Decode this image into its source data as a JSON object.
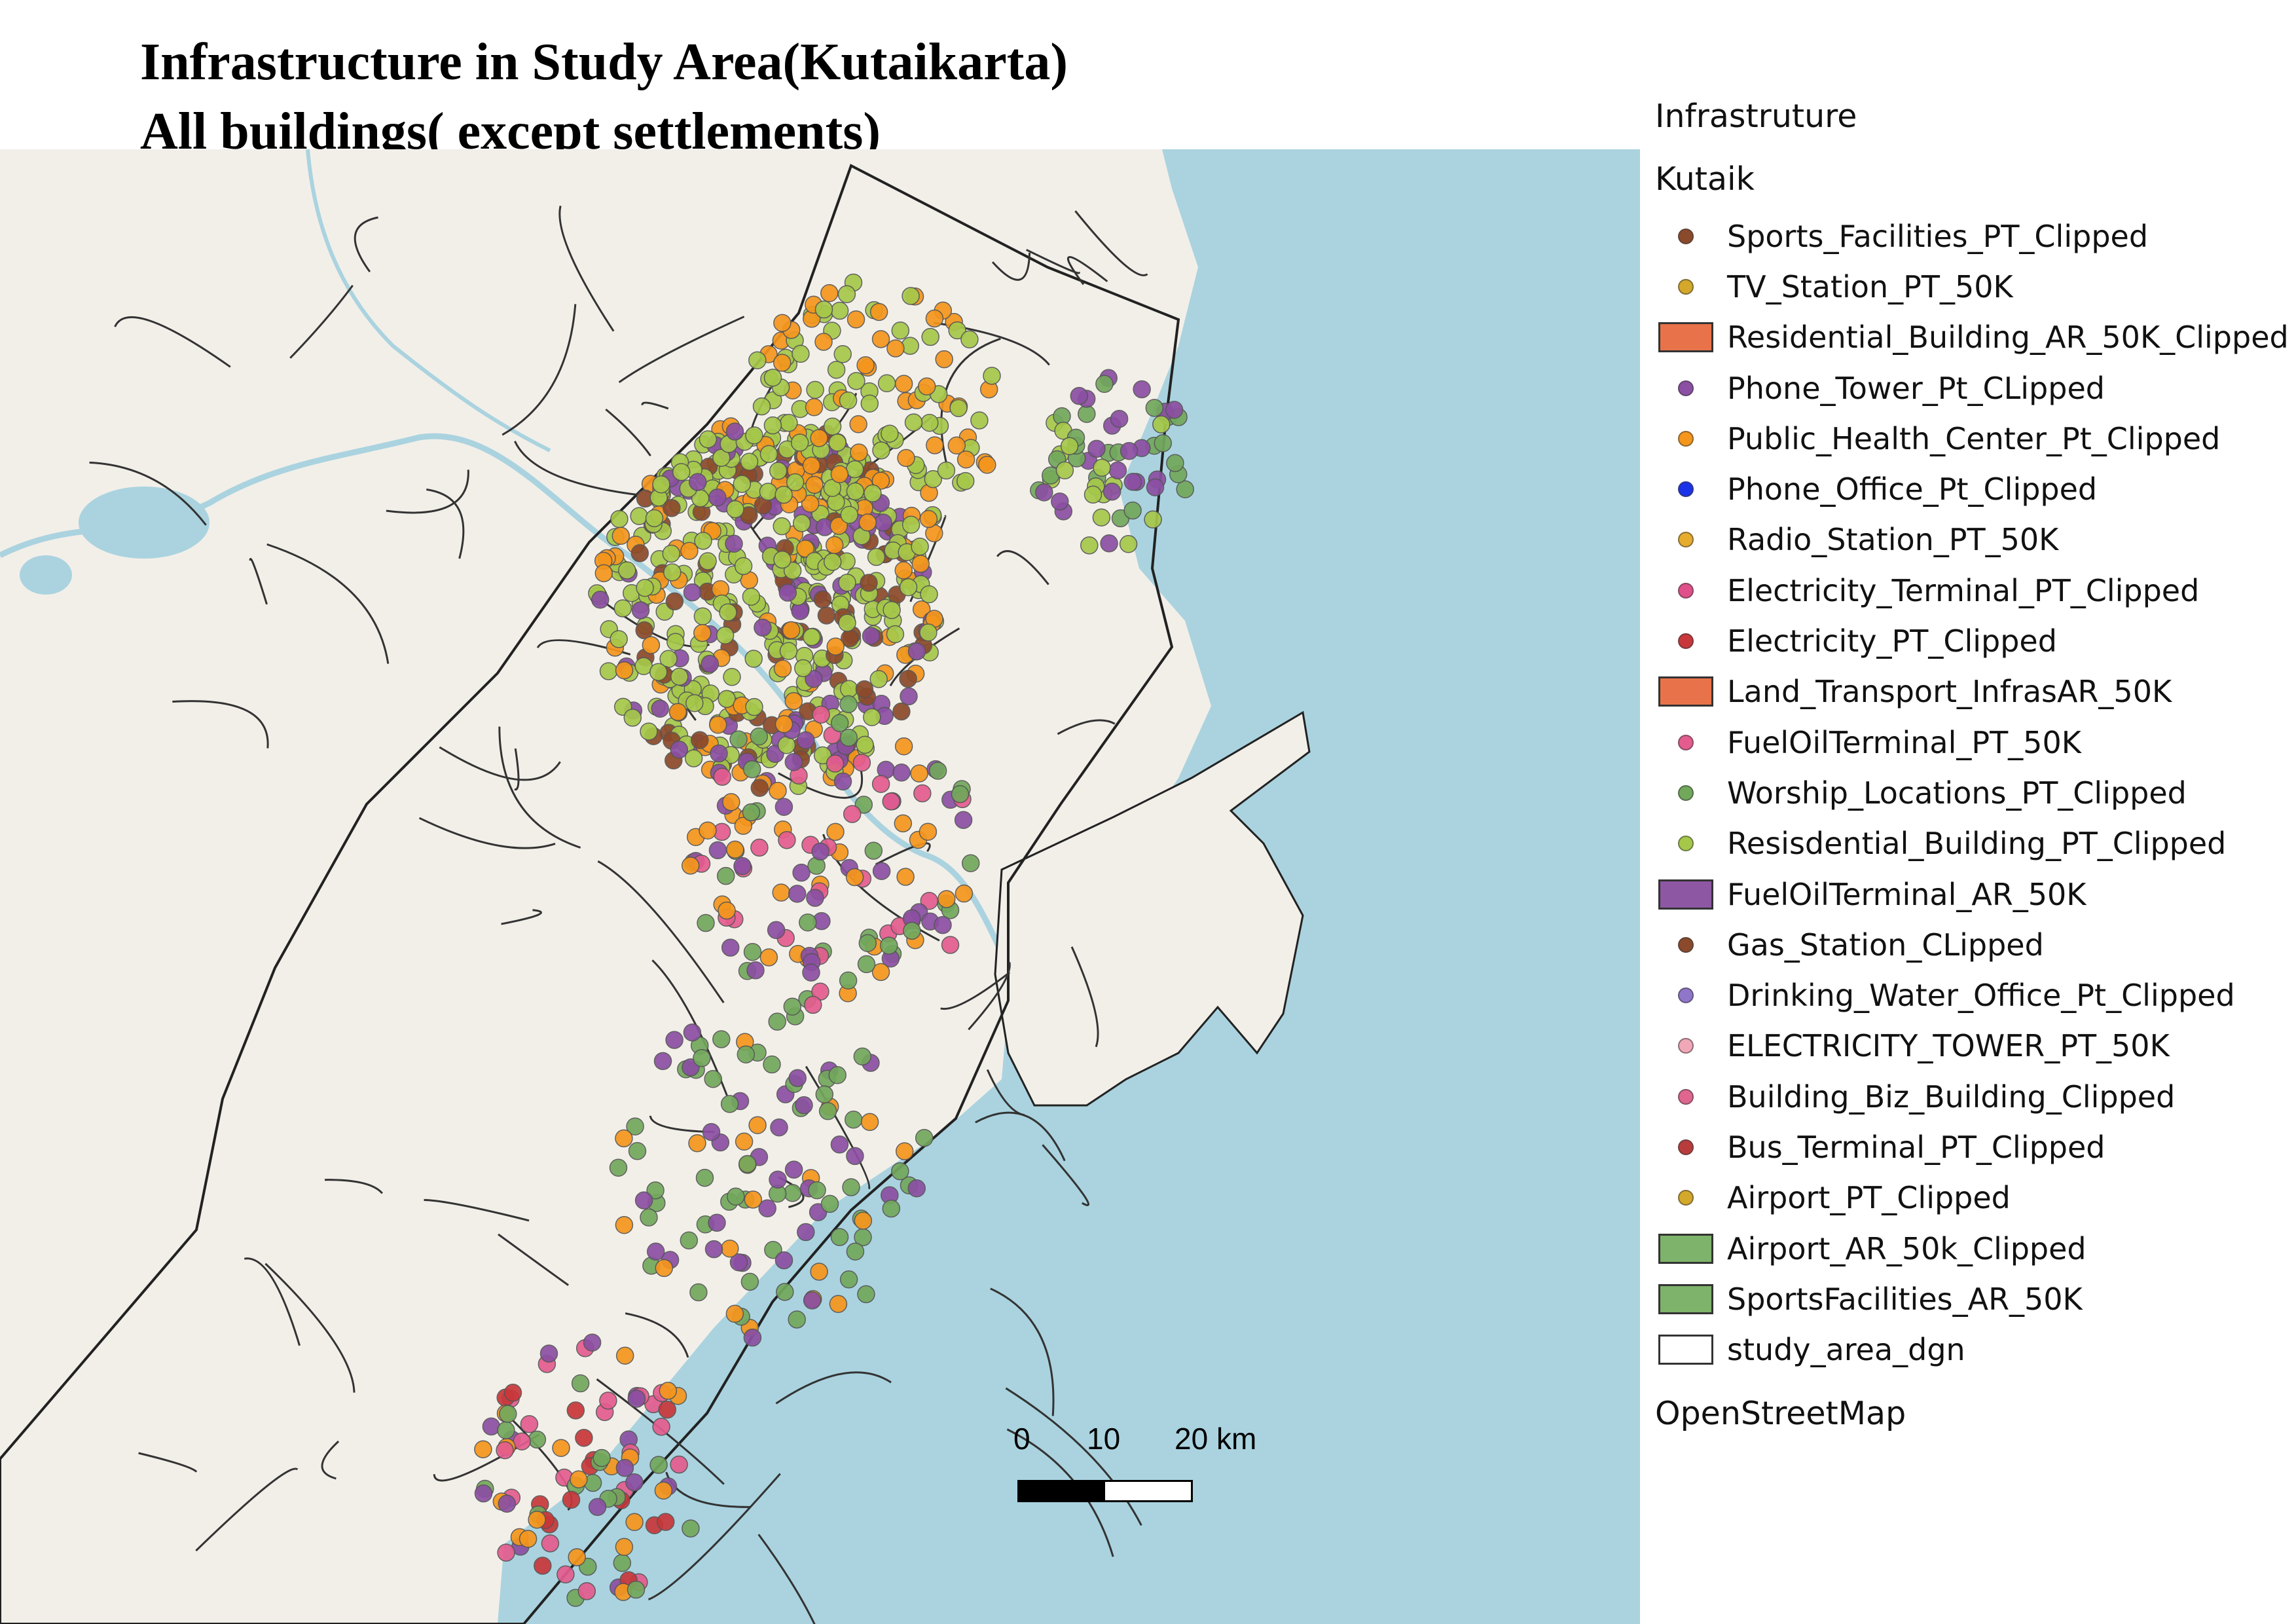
{
  "title": {
    "line1": "Infrastructure in Study Area(Kutaikarta)",
    "line2": "All buildings( except settlements)"
  },
  "legend": {
    "group": "Infrastruture",
    "subgroup": "Kutaik",
    "items": [
      {
        "label": " Sports_Facilities_PT_Clipped",
        "type": "point",
        "color": "#8b4a2b"
      },
      {
        "label": "TV_Station_PT_50K",
        "type": "point",
        "color": "#d4a82a"
      },
      {
        "label": "Residential_Building_AR_50K_Clipped",
        "type": "area",
        "color": "#e8734a"
      },
      {
        "label": "Phone_Tower_Pt_CLipped",
        "type": "point",
        "color": "#8b4fa3"
      },
      {
        "label": "Public_Health_Center_Pt_Clipped",
        "type": "point",
        "color": "#f5961c"
      },
      {
        "label": "Phone_Office_Pt_Clipped",
        "type": "point",
        "color": "#1a32e8"
      },
      {
        "label": "Radio_Station_PT_50K",
        "type": "point",
        "color": "#e6ac2e"
      },
      {
        "label": "Electricity_Terminal_PT_Clipped",
        "type": "point",
        "color": "#e0508a"
      },
      {
        "label": "Electricity_PT_Clipped",
        "type": "point",
        "color": "#c8373a"
      },
      {
        "label": "Land_Transport_InfrasAR_50K",
        "type": "area",
        "color": "#e8734a"
      },
      {
        "label": "FuelOilTerminal_PT_50K",
        "type": "point",
        "color": "#e45c8e"
      },
      {
        "label": " Worship_Locations_PT_Clipped",
        "type": "point",
        "color": "#72a85c"
      },
      {
        "label": "Resisdential_Building_PT_Clipped",
        "type": "point",
        "color": "#a6c84a"
      },
      {
        "label": "FuelOilTerminal_AR_50K",
        "type": "area",
        "color": "#8d57a3"
      },
      {
        "label": " Gas_Station_CLipped",
        "type": "point",
        "color": "#8b4a2b"
      },
      {
        "label": "Drinking_Water_Office_Pt_Clipped",
        "type": "point",
        "color": "#8f76c9"
      },
      {
        "label": "ELECTRICITY_TOWER_PT_50K",
        "type": "point",
        "color": "#f0a8b8"
      },
      {
        "label": "Building_Biz_Building_Clipped",
        "type": "point",
        "color": "#e06690"
      },
      {
        "label": "Bus_Terminal_PT_Clipped",
        "type": "point",
        "color": "#b83c3c"
      },
      {
        "label": " Airport_PT_Clipped",
        "type": "point",
        "color": "#d4a82a"
      },
      {
        "label": "Airport_AR_50k_Clipped",
        "type": "area",
        "color": "#7db36a"
      },
      {
        "label": "SportsFacilities_AR_50K",
        "type": "area",
        "color": "#7db36a"
      },
      {
        "label": "study_area_dgn",
        "type": "area",
        "color": "#ffffff"
      }
    ],
    "footer": "OpenStreetMap"
  },
  "scalebar": {
    "ticks": [
      "0",
      "10",
      "20 km"
    ]
  },
  "map": {
    "sea_color": "#aad3df",
    "land_color": "#f2efe9",
    "boundary_color": "#222222"
  }
}
